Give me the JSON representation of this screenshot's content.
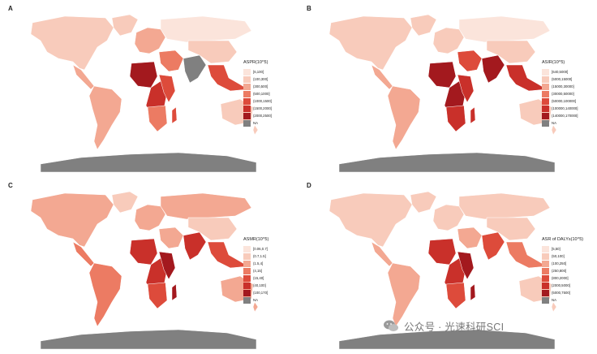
{
  "panels": [
    {
      "letter": "A",
      "legend_title": "ASPR(10^5)",
      "legend": [
        "[6,100]",
        "(100,300]",
        "(300,500]",
        "(500,1000]",
        "(1000,1500]",
        "(1500,2000]",
        "(2000,2500]",
        "NA"
      ],
      "shade": {
        "na": 1,
        "car": 2,
        "sa": 2,
        "eu": 2,
        "ru": 0,
        "me": 3,
        "wa": 6,
        "ca": 5,
        "ea": 4,
        "sa2": 3,
        "in": 7,
        "sea": 4,
        "ch": 1,
        "au": 1,
        "nz": 1
      }
    },
    {
      "letter": "B",
      "legend_title": "ASIR(10^5)",
      "legend": [
        "[640,5000]",
        "(5000,15000]",
        "(15000,30000]",
        "(30000,50000]",
        "(50000,100000]",
        "(100000,140000]",
        "(140000,170000]",
        "NA"
      ],
      "shade": {
        "na": 1,
        "car": 2,
        "sa": 2,
        "eu": 1,
        "ru": 0,
        "me": 4,
        "wa": 6,
        "ca": 6,
        "ea": 5,
        "sa2": 5,
        "in": 6,
        "sea": 5,
        "ch": 1,
        "au": 1,
        "nz": 1
      }
    },
    {
      "letter": "C",
      "legend_title": "ASMR(10^5)",
      "legend": [
        "[0.06,0.7]",
        "(0.7,1.5]",
        "(1.5,4]",
        "(4,15]",
        "(15,40]",
        "(40,100]",
        "(100,170]",
        "NA"
      ],
      "shade": {
        "na": 2,
        "car": 3,
        "sa": 3,
        "eu": 2,
        "ru": 2,
        "me": 2,
        "wa": 5,
        "ca": 5,
        "ea": 6,
        "sa2": 4,
        "in": 5,
        "sea": 4,
        "ch": 1,
        "au": 2,
        "nz": 2
      }
    },
    {
      "letter": "D",
      "legend_title": "ASR of DALYs(10^5)",
      "legend": [
        "[5,50]",
        "(50,100]",
        "(100,250]",
        "(250,800]",
        "(800,2000]",
        "(2000,5000]",
        "(5000,7500]",
        "NA"
      ],
      "shade": {
        "na": 1,
        "car": 2,
        "sa": 2,
        "eu": 1,
        "ru": 1,
        "me": 2,
        "wa": 5,
        "ca": 5,
        "ea": 6,
        "sa2": 4,
        "in": 4,
        "sea": 3,
        "ch": 1,
        "au": 1,
        "nz": 1
      }
    }
  ],
  "palette": [
    "#fbe4db",
    "#f8cbbb",
    "#f3a892",
    "#ec7b63",
    "#dd4b3b",
    "#c9302a",
    "#a3191e",
    "#808080"
  ],
  "na_color": "#808080",
  "watermark": "公众号 · 光速科研SCI"
}
